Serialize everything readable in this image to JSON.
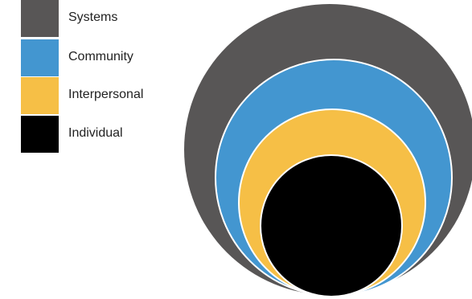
{
  "legend": {
    "items": [
      {
        "label": "Systems",
        "color": "#585656"
      },
      {
        "label": "Community",
        "color": "#4396d0"
      },
      {
        "label": "Interpersonal",
        "color": "#f6bf46"
      },
      {
        "label": "Individual",
        "color": "#000000"
      }
    ]
  },
  "diagram": {
    "type": "nested-circles",
    "layers": [
      {
        "name": "Systems",
        "color": "#585656"
      },
      {
        "name": "Community",
        "color": "#4396d0"
      },
      {
        "name": "Interpersonal",
        "color": "#f6bf46"
      },
      {
        "name": "Individual",
        "color": "#000000"
      }
    ],
    "ring_stroke": "#ffffff"
  }
}
